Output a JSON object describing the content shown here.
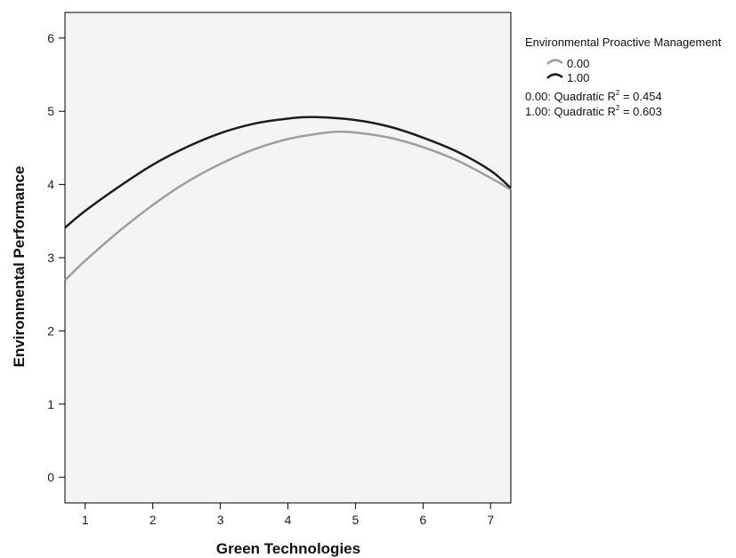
{
  "chart_data": {
    "type": "line",
    "title": "",
    "xlabel": "Green Technologies",
    "ylabel": "Environmental Performance",
    "xlim": [
      0.7,
      7.3
    ],
    "ylim": [
      -0.35,
      6.35
    ],
    "x_ticks": [
      1,
      2,
      3,
      4,
      5,
      6,
      7
    ],
    "y_ticks": [
      0,
      1,
      2,
      3,
      4,
      5,
      6
    ],
    "grid": false,
    "plot_background": "#f4f4f4",
    "legend_placement": "right, outside top",
    "legend": {
      "title": "Environmental Proactive Management",
      "fit_notes": [
        {
          "label": "0.00: Quadratic R",
          "sup": "2",
          "rest": " = 0.454"
        },
        {
          "label": "1.00: Quadratic R",
          "sup": "2",
          "rest": " = 0.603"
        }
      ]
    },
    "series": [
      {
        "name": "0.00",
        "color": "#9e9e9e",
        "x": [
          0.7,
          1.0,
          1.5,
          2.0,
          2.5,
          3.0,
          3.5,
          4.0,
          4.5,
          4.75,
          5.0,
          5.5,
          6.0,
          6.5,
          7.0,
          7.3
        ],
        "y": [
          2.69,
          2.96,
          3.36,
          3.72,
          4.03,
          4.28,
          4.48,
          4.62,
          4.7,
          4.72,
          4.71,
          4.64,
          4.51,
          4.33,
          4.09,
          3.93
        ]
      },
      {
        "name": "1.00",
        "color": "#1c1c1c",
        "x": [
          0.7,
          1.0,
          1.5,
          2.0,
          2.5,
          3.0,
          3.5,
          4.0,
          4.4,
          5.0,
          5.5,
          6.0,
          6.5,
          7.0,
          7.3
        ],
        "y": [
          3.41,
          3.64,
          3.97,
          4.27,
          4.51,
          4.7,
          4.83,
          4.9,
          4.92,
          4.88,
          4.79,
          4.64,
          4.45,
          4.19,
          3.95
        ]
      }
    ]
  }
}
